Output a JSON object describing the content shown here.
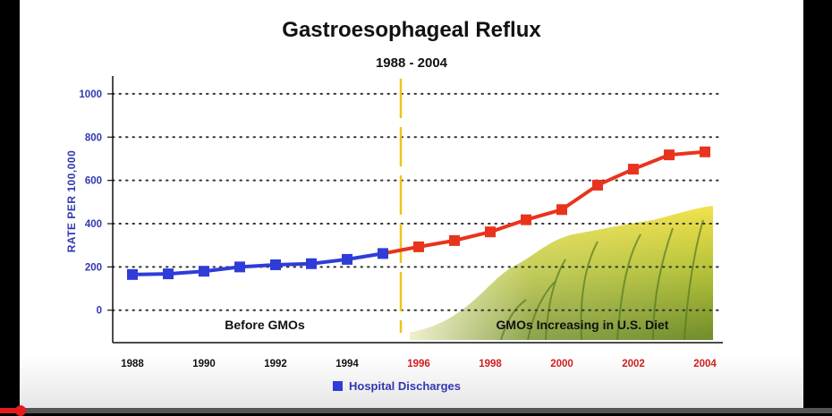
{
  "chart_data": {
    "type": "line",
    "title": "Gastroesophageal Reflux",
    "subtitle": "1988 - 2004",
    "ylabel": "RATE  PER  100,000",
    "xlabel": "",
    "ylim": [
      -150,
      1070
    ],
    "xlim": [
      1988,
      2004
    ],
    "grid": true,
    "yticks": [
      0,
      200,
      400,
      600,
      800,
      1000
    ],
    "xticks_before": [
      1988,
      1990,
      1992,
      1994
    ],
    "xticks_after": [
      1996,
      1998,
      2000,
      2002,
      2004
    ],
    "divider_year": 1995.5,
    "region_labels": {
      "before": "Before GMOs",
      "after": "GMOs Increasing in U.S. Diet"
    },
    "legend": {
      "label": "Hospital Discharges",
      "position": "bottom-center"
    },
    "series": [
      {
        "name": "Hospital Discharges",
        "x": [
          1988,
          1989,
          1990,
          1991,
          1992,
          1993,
          1994,
          1995,
          1996,
          1997,
          1998,
          1999,
          2000,
          2001,
          2002,
          2003,
          2004
        ],
        "y": [
          165,
          168,
          180,
          200,
          210,
          215,
          235,
          262,
          293,
          322,
          362,
          418,
          465,
          578,
          652,
          718,
          732
        ]
      }
    ],
    "colors": {
      "before": "#2f3cd8",
      "after": "#e8341c",
      "divider": "#f0c419",
      "axis_text": "#3238b0",
      "red_text": "#d02020",
      "grid": "#333333"
    }
  },
  "video_progress": 0.025
}
